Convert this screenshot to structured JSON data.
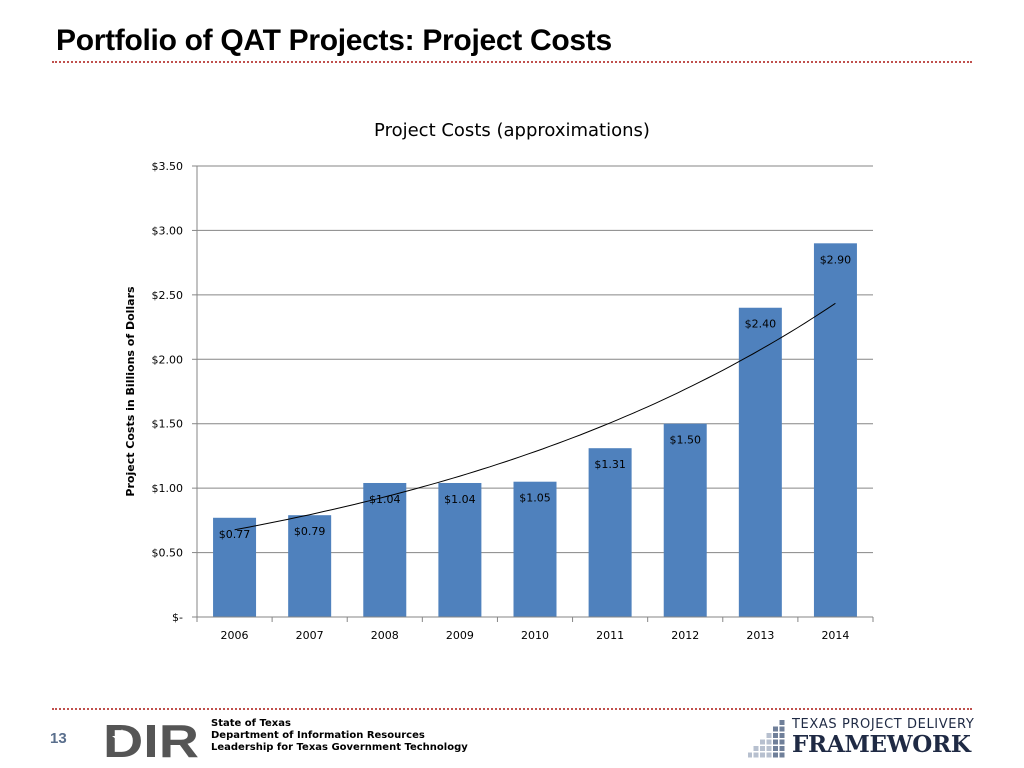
{
  "slide": {
    "title": "Portfolio of QAT Projects: Project Costs",
    "accent_color": "#c0504d",
    "page_number": "13"
  },
  "footer": {
    "agency_lines": [
      "State of Texas",
      "Department of Information Resources",
      "Leadership for Texas Government Technology"
    ],
    "dir_logo_text": "DIR",
    "framework_line1": "TEXAS PROJECT DELIVERY",
    "framework_line2": "FRAMEWORK"
  },
  "chart_data": {
    "type": "bar",
    "title": "Project Costs (approximations)",
    "ylabel": "Project Costs in Billions of Dollars",
    "xlabel": "",
    "categories": [
      "2006",
      "2007",
      "2008",
      "2009",
      "2010",
      "2011",
      "2012",
      "2013",
      "2014"
    ],
    "values": [
      0.77,
      0.79,
      1.04,
      1.04,
      1.05,
      1.31,
      1.5,
      2.4,
      2.9
    ],
    "data_labels": [
      "$0.77",
      "$0.79",
      "$1.04",
      "$1.04",
      "$1.05",
      "$1.31",
      "$1.50",
      "$2.40",
      "$2.90"
    ],
    "ylim": [
      0,
      3.5
    ],
    "yticks": [
      0,
      0.5,
      1.0,
      1.5,
      2.0,
      2.5,
      3.0,
      3.5
    ],
    "ytick_labels": [
      "$-",
      "$0.50",
      "$1.00",
      "$1.50",
      "$2.00",
      "$2.50",
      "$3.00",
      "$3.50"
    ],
    "grid": true,
    "trendline": "exponential",
    "bar_color": "#4f81bd",
    "trendline_color": "#000000",
    "legend": "none"
  }
}
